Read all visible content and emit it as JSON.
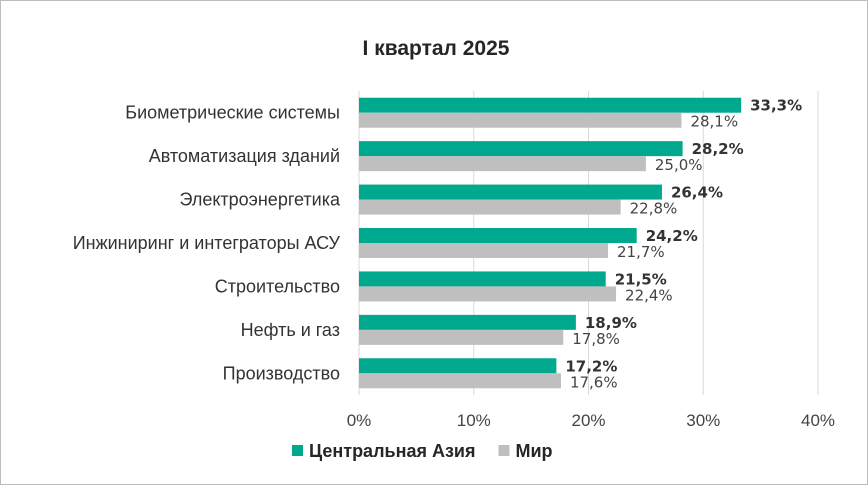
{
  "chart_data": {
    "type": "bar",
    "orientation": "horizontal",
    "title": "I квартал 2025",
    "categories": [
      "Биометрические системы",
      "Автоматизация зданий",
      "Электроэнергетика",
      "Инжиниринг и интеграторы АСУ",
      "Строительство",
      "Нефть и газ",
      "Производство"
    ],
    "series": [
      {
        "name": "Центральная Азия",
        "values": [
          33.3,
          28.2,
          26.4,
          24.2,
          21.5,
          18.9,
          17.2
        ],
        "labels": [
          "33,3%",
          "28,2%",
          "26,4%",
          "24,2%",
          "21,5%",
          "18,9%",
          "17,2%"
        ],
        "color": "#00A88E"
      },
      {
        "name": "Мир",
        "values": [
          28.1,
          25.0,
          22.8,
          21.7,
          22.4,
          17.8,
          17.6
        ],
        "labels": [
          "28,1%",
          "25,0%",
          "22,8%",
          "21,7%",
          "22,4%",
          "17,8%",
          "17,6%"
        ],
        "color": "#BFBFBF"
      }
    ],
    "xlim": [
      0,
      40
    ],
    "xticks": [
      0,
      10,
      20,
      30,
      40
    ],
    "xtick_labels": [
      "0%",
      "10%",
      "20%",
      "30%",
      "40%"
    ],
    "grid": true,
    "legend_position": "bottom"
  }
}
